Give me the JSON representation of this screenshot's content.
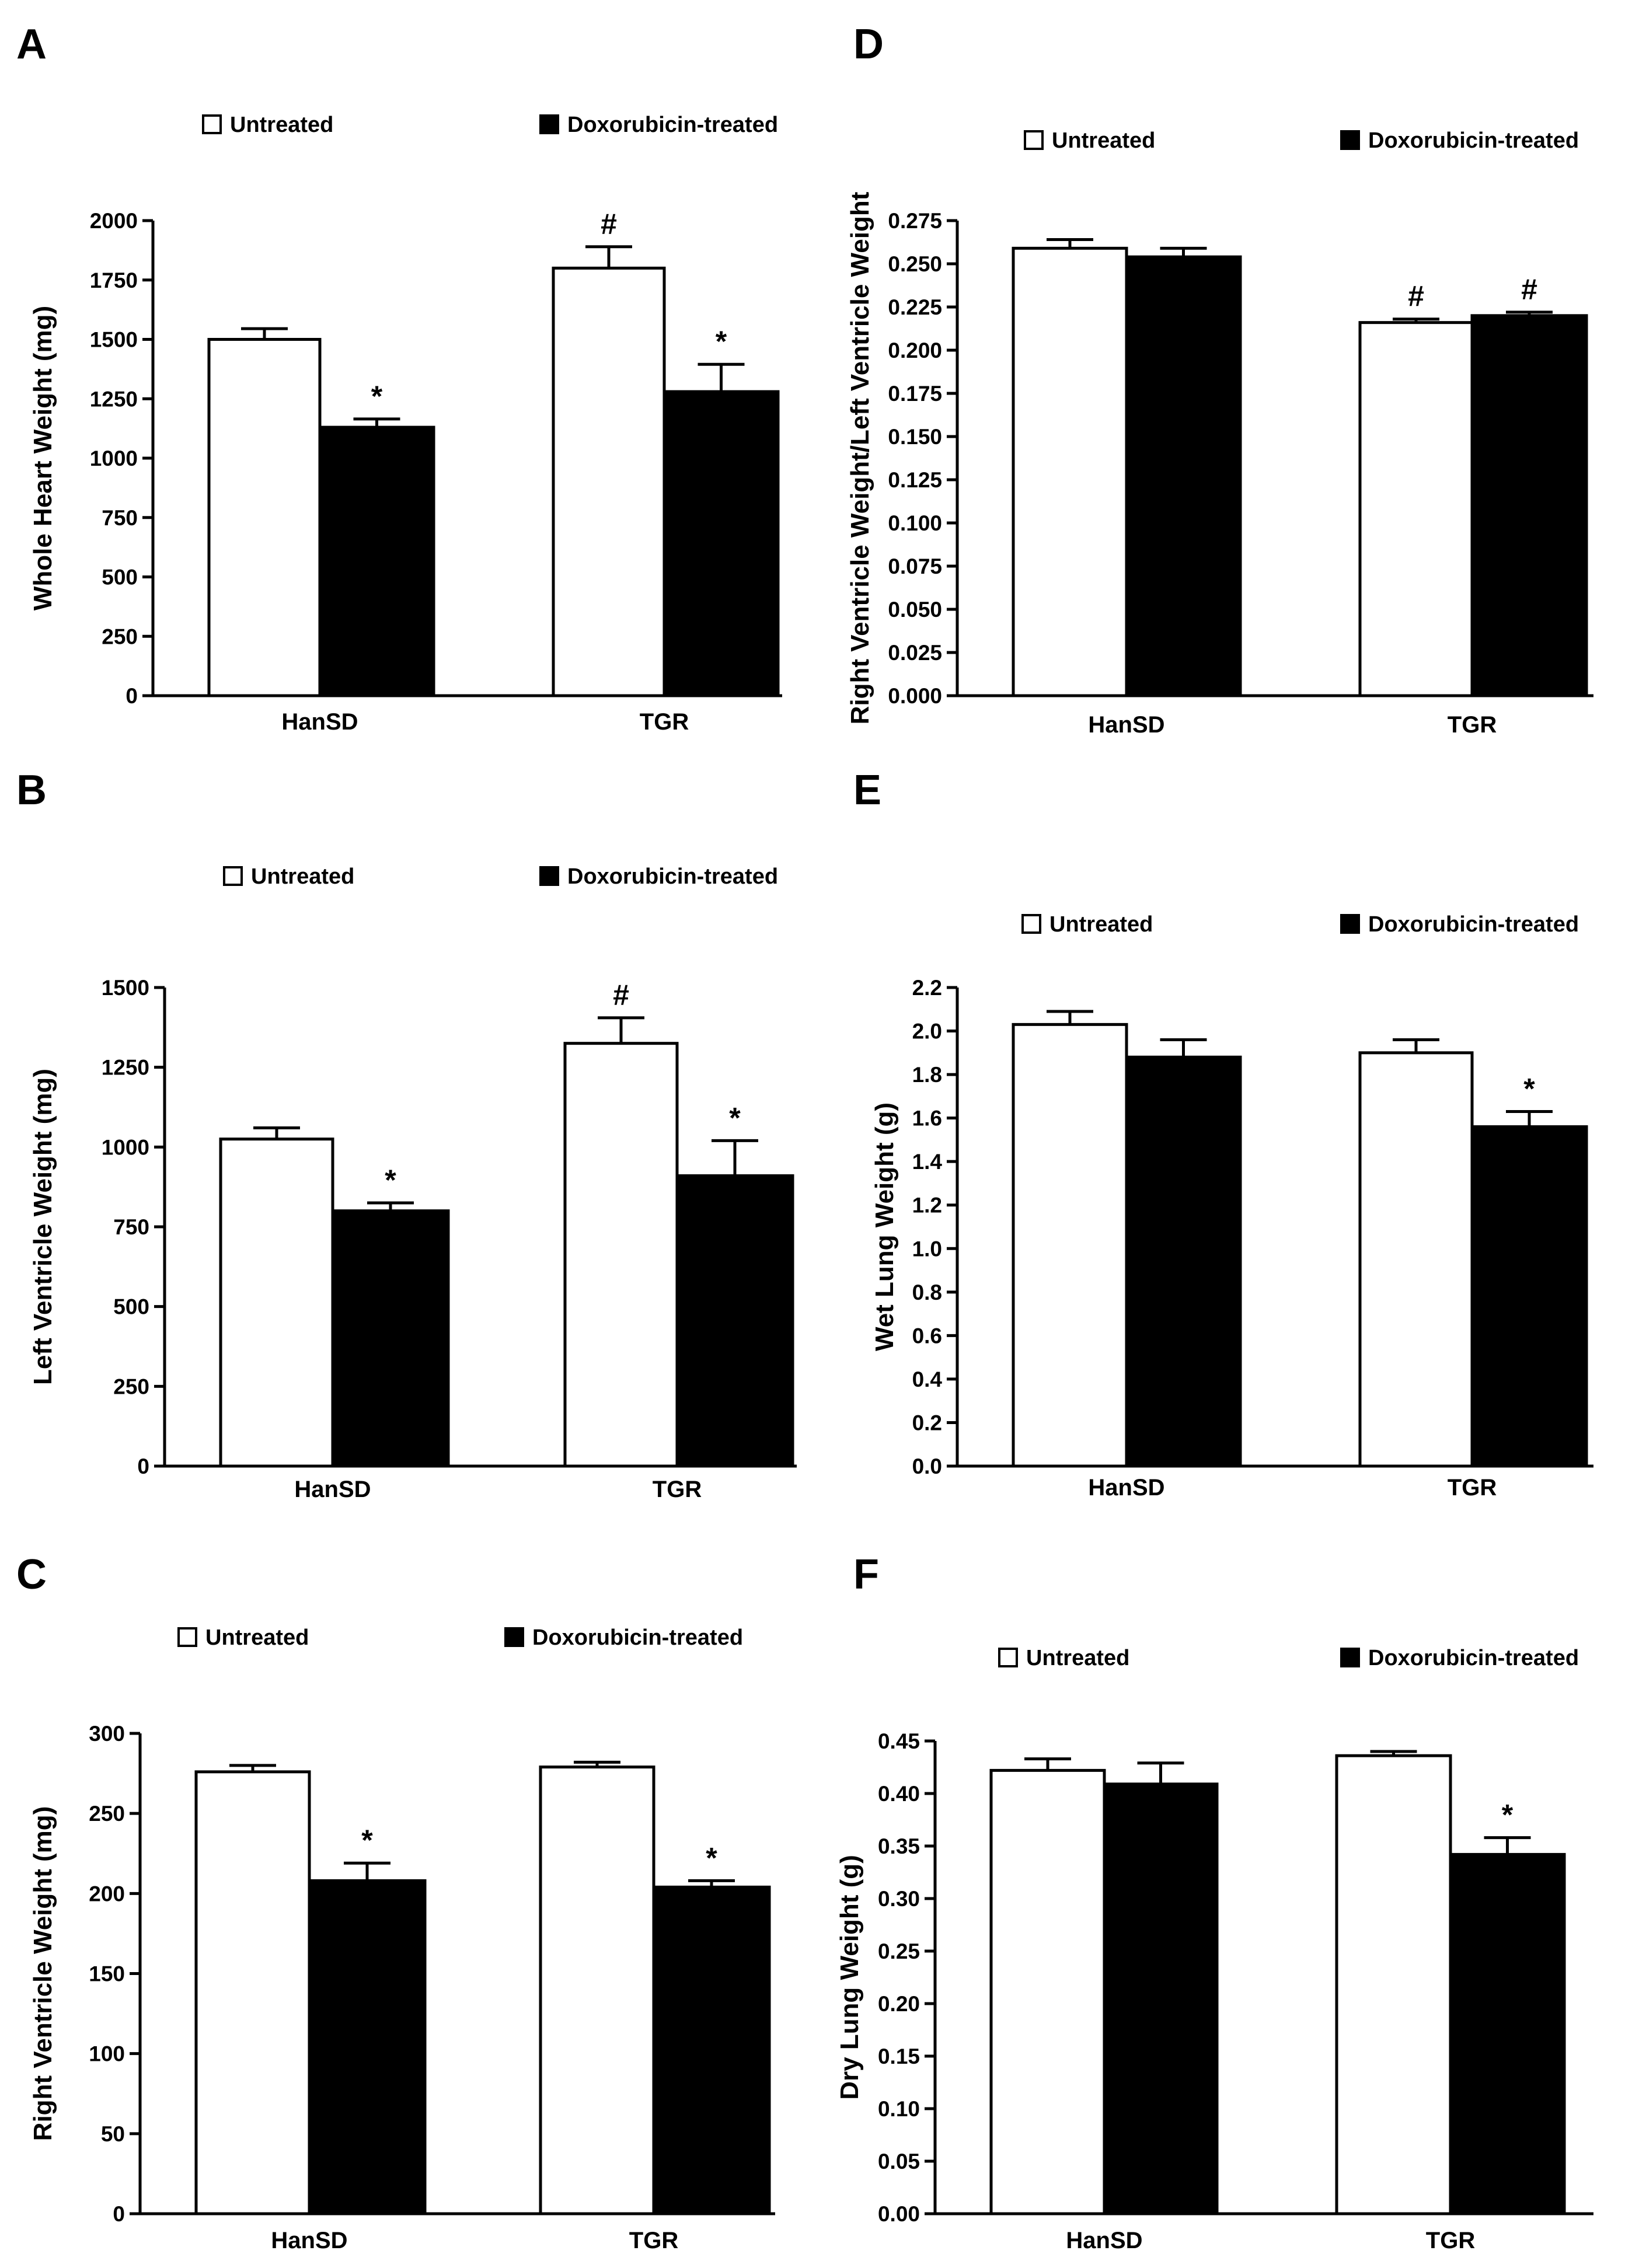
{
  "colors": {
    "untreated": "#ffffff",
    "treated": "#000000",
    "axis": "#000000"
  },
  "chart_data": [
    {
      "panel": "A",
      "type": "bar",
      "categories": [
        "HanSD",
        "TGR"
      ],
      "ylabel": "Whole Heart Weight (mg)",
      "xlabel": "",
      "ylim": [
        0,
        2000
      ],
      "yticks": [
        0,
        250,
        500,
        750,
        1000,
        1250,
        1500,
        1750,
        2000
      ],
      "tick_labels": [
        "0",
        "250",
        "500",
        "750",
        "1000",
        "1250",
        "1500",
        "1750",
        "2000"
      ],
      "series": [
        {
          "name": "Untreated",
          "values": [
            1500,
            1800
          ],
          "errors": [
            45,
            90
          ],
          "marks": [
            "",
            "#"
          ]
        },
        {
          "name": "Doxorubicin-treated",
          "values": [
            1130,
            1280
          ],
          "errors": [
            35,
            115
          ],
          "marks": [
            "*",
            "*"
          ]
        }
      ],
      "legend_position": "top"
    },
    {
      "panel": "B",
      "type": "bar",
      "categories": [
        "HanSD",
        "TGR"
      ],
      "ylabel": "Left Ventricle Weight (mg)",
      "xlabel": "",
      "ylim": [
        0,
        1500
      ],
      "yticks": [
        0,
        250,
        500,
        750,
        1000,
        1250,
        1500
      ],
      "tick_labels": [
        "0",
        "250",
        "500",
        "750",
        "1000",
        "1250",
        "1500"
      ],
      "series": [
        {
          "name": "Untreated",
          "values": [
            1025,
            1325
          ],
          "errors": [
            35,
            80
          ],
          "marks": [
            "",
            "#"
          ]
        },
        {
          "name": "Doxorubicin-treated",
          "values": [
            800,
            910
          ],
          "errors": [
            25,
            110
          ],
          "marks": [
            "*",
            "*"
          ]
        }
      ],
      "legend_position": "top"
    },
    {
      "panel": "C",
      "type": "bar",
      "categories": [
        "HanSD",
        "TGR"
      ],
      "ylabel": "Right Ventricle Weight (mg)",
      "xlabel": "",
      "ylim": [
        0,
        300
      ],
      "yticks": [
        0,
        50,
        100,
        150,
        200,
        250,
        300
      ],
      "tick_labels": [
        "0",
        "50",
        "100",
        "150",
        "200",
        "250",
        "300"
      ],
      "series": [
        {
          "name": "Untreated",
          "values": [
            276,
            279
          ],
          "errors": [
            4,
            3
          ],
          "marks": [
            "",
            ""
          ]
        },
        {
          "name": "Doxorubicin-treated",
          "values": [
            208,
            204
          ],
          "errors": [
            11,
            4
          ],
          "marks": [
            "*",
            "*"
          ]
        }
      ],
      "legend_position": "top"
    },
    {
      "panel": "D",
      "type": "bar",
      "categories": [
        "HanSD",
        "TGR"
      ],
      "ylabel": "Right Ventricle Weight/Left Ventricle Weight",
      "xlabel": "",
      "ylim": [
        0,
        0.275
      ],
      "yticks": [
        0,
        0.025,
        0.05,
        0.075,
        0.1,
        0.125,
        0.15,
        0.175,
        0.2,
        0.225,
        0.25,
        0.275
      ],
      "tick_labels": [
        "0.000",
        "0.025",
        "0.050",
        "0.075",
        "0.100",
        "0.125",
        "0.150",
        "0.175",
        "0.200",
        "0.225",
        "0.250",
        "0.275"
      ],
      "series": [
        {
          "name": "Untreated",
          "values": [
            0.259,
            0.216
          ],
          "errors": [
            0.005,
            0.002
          ],
          "marks": [
            "",
            "#"
          ]
        },
        {
          "name": "Doxorubicin-treated",
          "values": [
            0.254,
            0.22
          ],
          "errors": [
            0.005,
            0.002
          ],
          "marks": [
            "",
            "#"
          ]
        }
      ],
      "legend_position": "top"
    },
    {
      "panel": "E",
      "type": "bar",
      "categories": [
        "HanSD",
        "TGR"
      ],
      "ylabel": "Wet Lung Weight (g)",
      "xlabel": "",
      "ylim": [
        0,
        2.2
      ],
      "yticks": [
        0,
        0.2,
        0.4,
        0.6,
        0.8,
        1.0,
        1.2,
        1.4,
        1.6,
        1.8,
        2.0,
        2.2
      ],
      "tick_labels": [
        "0.0",
        "0.2",
        "0.4",
        "0.6",
        "0.8",
        "1.0",
        "1.2",
        "1.4",
        "1.6",
        "1.8",
        "2.0",
        "2.2"
      ],
      "series": [
        {
          "name": "Untreated",
          "values": [
            2.03,
            1.9
          ],
          "errors": [
            0.06,
            0.06
          ],
          "marks": [
            "",
            ""
          ]
        },
        {
          "name": "Doxorubicin-treated",
          "values": [
            1.88,
            1.56
          ],
          "errors": [
            0.08,
            0.07
          ],
          "marks": [
            "",
            "*"
          ]
        }
      ],
      "legend_position": "top"
    },
    {
      "panel": "F",
      "type": "bar",
      "categories": [
        "HanSD",
        "TGR"
      ],
      "ylabel": "Dry Lung Weight (g)",
      "xlabel": "",
      "ylim": [
        0,
        0.45
      ],
      "yticks": [
        0,
        0.05,
        0.1,
        0.15,
        0.2,
        0.25,
        0.3,
        0.35,
        0.4,
        0.45
      ],
      "tick_labels": [
        "0.00",
        "0.05",
        "0.10",
        "0.15",
        "0.20",
        "0.25",
        "0.30",
        "0.35",
        "0.40",
        "0.45"
      ],
      "series": [
        {
          "name": "Untreated",
          "values": [
            0.422,
            0.436
          ],
          "errors": [
            0.011,
            0.004
          ],
          "marks": [
            "",
            ""
          ]
        },
        {
          "name": "Doxorubicin-treated",
          "values": [
            0.409,
            0.342
          ],
          "errors": [
            0.02,
            0.016
          ],
          "marks": [
            "",
            "*"
          ]
        }
      ],
      "legend_position": "top"
    }
  ]
}
